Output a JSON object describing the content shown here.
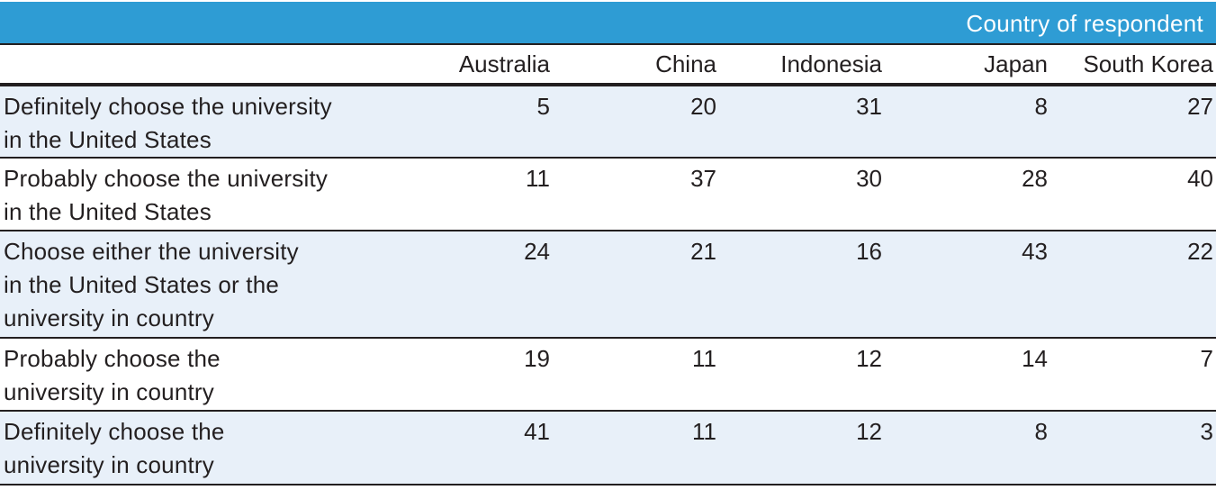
{
  "header": {
    "group_caption": "Country of respondent",
    "columns": [
      "Australia",
      "China",
      "Indonesia",
      "Japan",
      "South Korea"
    ]
  },
  "rows": [
    {
      "label_lines": [
        "Definitely choose the university",
        "in the United States"
      ],
      "values": [
        "5",
        "20",
        "31",
        "8",
        "27"
      ]
    },
    {
      "label_lines": [
        "Probably choose the university",
        "in the United States"
      ],
      "values": [
        "11",
        "37",
        "30",
        "28",
        "40"
      ]
    },
    {
      "label_lines": [
        "Choose either the university",
        "in the United States or the",
        "university in country"
      ],
      "values": [
        "24",
        "21",
        "16",
        "43",
        "22"
      ]
    },
    {
      "label_lines": [
        "Probably choose the",
        "university in country"
      ],
      "values": [
        "19",
        "11",
        "12",
        "14",
        "7"
      ]
    },
    {
      "label_lines": [
        "Definitely choose the",
        "university in country"
      ],
      "values": [
        "41",
        "11",
        "12",
        "8",
        "3"
      ]
    }
  ],
  "colors": {
    "header_band": "#2e9cd4",
    "shaded_row": "#e8f0f9",
    "text": "#231f20"
  }
}
